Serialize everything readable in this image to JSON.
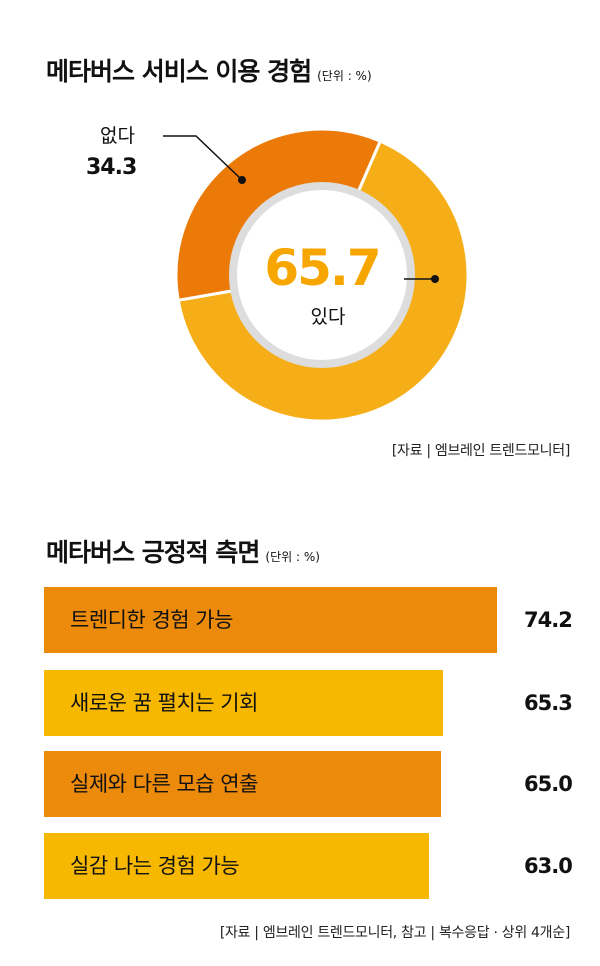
{
  "colors": {
    "orange": "#ec7a08",
    "yellow": "#f5ae17",
    "bar_orange": "#ec8a0c",
    "bar_yellow": "#f6b800",
    "center_number": "#f7a600"
  },
  "donut": {
    "title": "메타버스 서비스 이용 경험",
    "unit": "(단위 : %)",
    "source": "[자료 | 엠브레인 트렌드모니터]"
  },
  "bars": {
    "title": "메타버스 긍정적 측면",
    "unit": "(단위 : %)",
    "source": "[자료 | 엠브레인 트렌드모니터, 참고 | 복수응답 · 상위 4개순]"
  },
  "chart_data": [
    {
      "type": "pie",
      "title": "메타버스 서비스 이용 경험",
      "slices": [
        {
          "label": "있다",
          "value": 65.7,
          "value_text": "65.7",
          "color": "#f5ae17"
        },
        {
          "label": "없다",
          "value": 34.3,
          "value_text": "34.3",
          "color": "#ec7a08"
        }
      ]
    },
    {
      "type": "bar",
      "orientation": "horizontal",
      "title": "메타버스 긍정적 측면",
      "categories": [
        "트렌디한 경험 가능",
        "새로운 꿈 펼치는 기회",
        "실제와 다른 모습 연출",
        "실감 나는 경험 가능"
      ],
      "values": [
        74.2,
        65.3,
        65.0,
        63.0
      ],
      "value_labels": [
        "74.2",
        "65.3",
        "65.0",
        "63.0"
      ],
      "bar_colors": [
        "#ec8a0c",
        "#f6b800",
        "#ec8a0c",
        "#f6b800"
      ]
    }
  ]
}
